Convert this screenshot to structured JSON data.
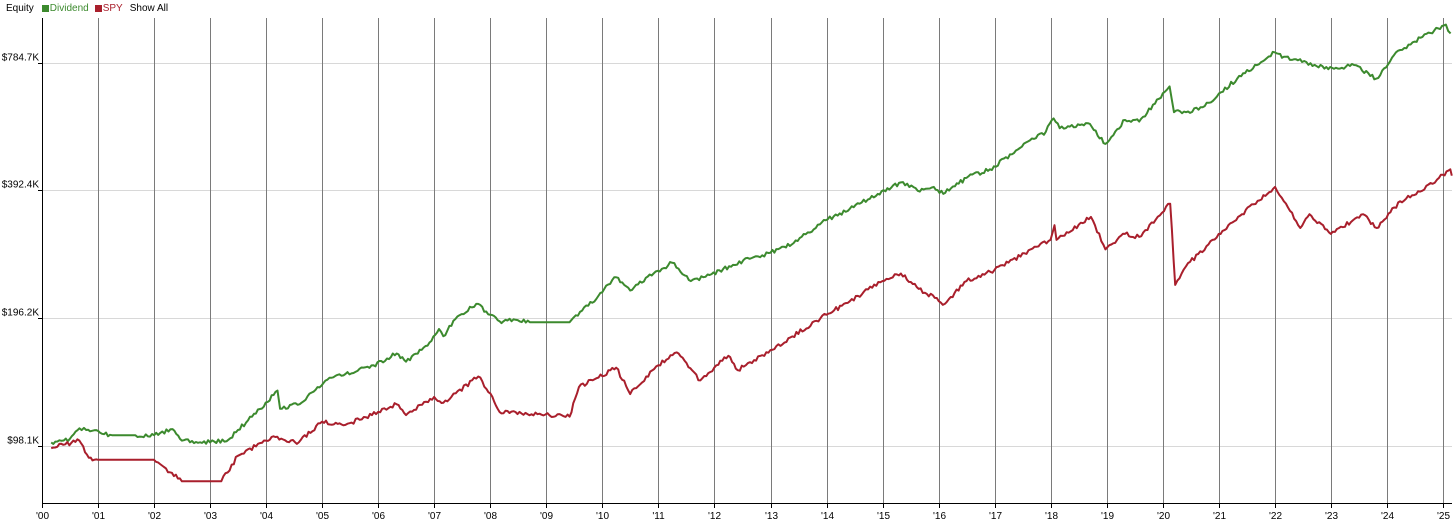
{
  "legend": {
    "title": "Equity",
    "show_all": "Show All"
  },
  "chart_data": {
    "type": "line",
    "title": "Equity",
    "y_scale": "log",
    "grid": true,
    "legend_position": "top-left",
    "xlim": [
      "2000-01-01",
      "2025-03-01"
    ],
    "ylim": [
      72000,
      1000000
    ],
    "x_tick_labels": [
      "'00",
      "'01",
      "'02",
      "'03",
      "'04",
      "'05",
      "'06",
      "'07",
      "'08",
      "'09",
      "'10",
      "'11",
      "'12",
      "'13",
      "'14",
      "'15",
      "'16",
      "'17",
      "'18",
      "'19",
      "'20",
      "'21",
      "'22",
      "'23",
      "'24",
      "'25"
    ],
    "y_ticks": [
      {
        "value": 98100,
        "label": "$98.1K"
      },
      {
        "value": 196200,
        "label": "$196.2K"
      },
      {
        "value": 392400,
        "label": "$392.4K"
      },
      {
        "value": 784700,
        "label": "$784.7K"
      }
    ],
    "series": [
      {
        "name": "Dividend",
        "color": "#3c8a2e",
        "points": [
          [
            "2000-03-01",
            100000
          ],
          [
            "2000-07-01",
            102000
          ],
          [
            "2000-09-01",
            108000
          ],
          [
            "2000-10-15",
            107000
          ],
          [
            "2001-04-01",
            104000
          ],
          [
            "2001-09-01",
            104000
          ],
          [
            "2002-01-01",
            104000
          ],
          [
            "2002-05-01",
            107500
          ],
          [
            "2002-07-01",
            101000
          ],
          [
            "2003-01-01",
            100000
          ],
          [
            "2003-05-01",
            101500
          ],
          [
            "2003-07-01",
            107000
          ],
          [
            "2003-10-01",
            115000
          ],
          [
            "2004-03-15",
            132500
          ],
          [
            "2004-04-01",
            120000
          ],
          [
            "2004-09-01",
            125000
          ],
          [
            "2004-12-01",
            135000
          ],
          [
            "2005-03-01",
            142000
          ],
          [
            "2005-06-01",
            145000
          ],
          [
            "2005-12-01",
            152000
          ],
          [
            "2006-05-01",
            162000
          ],
          [
            "2006-07-01",
            155000
          ],
          [
            "2006-12-01",
            172000
          ],
          [
            "2007-02-01",
            185000
          ],
          [
            "2007-03-01",
            178000
          ],
          [
            "2007-06-01",
            198000
          ],
          [
            "2007-10-01",
            212000
          ],
          [
            "2008-01-01",
            200000
          ],
          [
            "2008-03-01",
            193000
          ],
          [
            "2008-06-01",
            195000
          ],
          [
            "2008-09-15",
            192000
          ],
          [
            "2009-06-01",
            192000
          ],
          [
            "2009-10-01",
            210000
          ],
          [
            "2010-04-01",
            245000
          ],
          [
            "2010-07-01",
            228000
          ],
          [
            "2010-12-01",
            250000
          ],
          [
            "2011-04-01",
            265000
          ],
          [
            "2011-08-01",
            240000
          ],
          [
            "2011-12-01",
            248000
          ],
          [
            "2012-05-01",
            262000
          ],
          [
            "2012-09-01",
            272000
          ],
          [
            "2013-01-01",
            280000
          ],
          [
            "2013-06-01",
            295000
          ],
          [
            "2013-12-01",
            330000
          ],
          [
            "2014-06-01",
            355000
          ],
          [
            "2014-12-01",
            385000
          ],
          [
            "2015-05-01",
            410000
          ],
          [
            "2015-09-01",
            390000
          ],
          [
            "2015-12-01",
            400000
          ],
          [
            "2016-02-01",
            385000
          ],
          [
            "2016-07-01",
            420000
          ],
          [
            "2016-12-01",
            440000
          ],
          [
            "2017-06-01",
            490000
          ],
          [
            "2017-12-01",
            540000
          ],
          [
            "2018-01-20",
            580000
          ],
          [
            "2018-03-01",
            550000
          ],
          [
            "2018-09-01",
            565000
          ],
          [
            "2018-12-24",
            505000
          ],
          [
            "2019-05-01",
            575000
          ],
          [
            "2019-08-01",
            570000
          ],
          [
            "2020-01-15",
            670000
          ],
          [
            "2020-02-15",
            690000
          ],
          [
            "2020-03-15",
            600000
          ],
          [
            "2020-06-01",
            600000
          ],
          [
            "2020-10-01",
            620000
          ],
          [
            "2021-05-01",
            720000
          ],
          [
            "2021-12-31",
            830000
          ],
          [
            "2022-03-01",
            810000
          ],
          [
            "2022-06-01",
            795000
          ],
          [
            "2022-10-01",
            770000
          ],
          [
            "2023-03-01",
            760000
          ],
          [
            "2023-06-01",
            775000
          ],
          [
            "2023-10-25",
            720000
          ],
          [
            "2024-03-01",
            830000
          ],
          [
            "2024-07-01",
            880000
          ],
          [
            "2024-12-01",
            945000
          ],
          [
            "2025-01-20",
            965000
          ],
          [
            "2025-02-20",
            920000
          ]
        ]
      },
      {
        "name": "SPY",
        "color": "#a91f2c",
        "points": [
          [
            "2000-03-01",
            97000
          ],
          [
            "2000-06-01",
            99000
          ],
          [
            "2000-09-01",
            101000
          ],
          [
            "2000-11-01",
            92000
          ],
          [
            "2001-01-01",
            91000
          ],
          [
            "2001-12-31",
            91000
          ],
          [
            "2002-07-01",
            81000
          ],
          [
            "2003-03-15",
            81000
          ],
          [
            "2003-07-01",
            93000
          ],
          [
            "2003-12-31",
            101000
          ],
          [
            "2004-03-01",
            103000
          ],
          [
            "2004-08-01",
            100000
          ],
          [
            "2004-12-31",
            112000
          ],
          [
            "2005-06-01",
            110000
          ],
          [
            "2005-12-31",
            118000
          ],
          [
            "2006-05-01",
            123000
          ],
          [
            "2006-07-01",
            116000
          ],
          [
            "2006-12-31",
            128000
          ],
          [
            "2007-03-01",
            124000
          ],
          [
            "2007-10-15",
            143000
          ],
          [
            "2008-01-15",
            128000
          ],
          [
            "2008-03-01",
            118000
          ],
          [
            "2009-06-01",
            115000
          ],
          [
            "2009-08-01",
            135000
          ],
          [
            "2010-04-01",
            150000
          ],
          [
            "2010-07-01",
            130000
          ],
          [
            "2010-12-31",
            152000
          ],
          [
            "2011-04-30",
            163000
          ],
          [
            "2011-10-01",
            140000
          ],
          [
            "2011-12-31",
            150000
          ],
          [
            "2012-04-01",
            160000
          ],
          [
            "2012-06-01",
            148000
          ],
          [
            "2012-12-31",
            165000
          ],
          [
            "2013-12-31",
            200000
          ],
          [
            "2014-06-01",
            215000
          ],
          [
            "2014-12-31",
            240000
          ],
          [
            "2015-05-01",
            250000
          ],
          [
            "2015-08-25",
            230000
          ],
          [
            "2016-02-11",
            212000
          ],
          [
            "2016-07-01",
            240000
          ],
          [
            "2016-12-31",
            255000
          ],
          [
            "2017-12-31",
            300000
          ],
          [
            "2018-01-26",
            325000
          ],
          [
            "2018-02-08",
            300000
          ],
          [
            "2018-09-20",
            340000
          ],
          [
            "2018-12-24",
            285000
          ],
          [
            "2019-04-30",
            310000
          ],
          [
            "2019-08-01",
            305000
          ],
          [
            "2020-02-19",
            365000
          ],
          [
            "2020-03-23",
            235000
          ],
          [
            "2020-06-01",
            260000
          ],
          [
            "2020-12-31",
            310000
          ],
          [
            "2021-06-01",
            345000
          ],
          [
            "2022-01-03",
            400000
          ],
          [
            "2022-03-01",
            370000
          ],
          [
            "2022-06-16",
            320000
          ],
          [
            "2022-08-15",
            345000
          ],
          [
            "2023-01-01",
            310000
          ],
          [
            "2023-07-31",
            345000
          ],
          [
            "2023-10-27",
            320000
          ],
          [
            "2024-03-28",
            370000
          ],
          [
            "2024-08-05",
            390000
          ],
          [
            "2024-12-06",
            420000
          ],
          [
            "2025-02-18",
            440000
          ],
          [
            "2025-02-28",
            425000
          ]
        ]
      }
    ]
  }
}
